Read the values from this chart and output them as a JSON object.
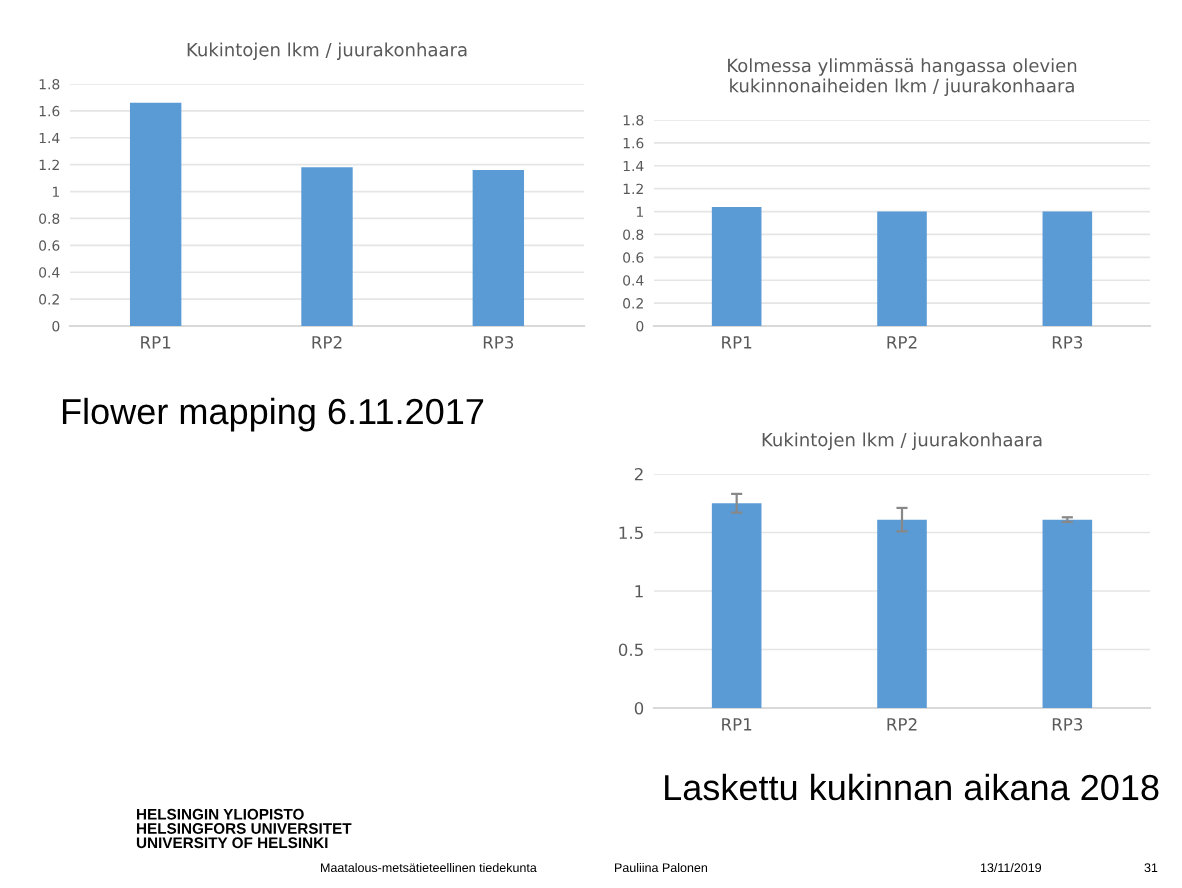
{
  "chart_data": [
    {
      "type": "bar",
      "title": "Kukintojen lkm / juurakonhaara",
      "categories": [
        "RP1",
        "RP2",
        "RP3"
      ],
      "values": [
        1.66,
        1.18,
        1.16
      ],
      "color": "#5b9bd5",
      "ylim": [
        0,
        1.8
      ],
      "yticks": [
        0,
        0.2,
        0.4,
        0.6,
        0.8,
        1,
        1.2,
        1.4,
        1.6,
        1.8
      ],
      "grid": "y",
      "annotations": [
        "Flower mapping 6.11.2017"
      ]
    },
    {
      "type": "bar",
      "title": "Kolmessa ylimmässä hangassa olevien\nkukinnonaiheiden lkm / juurakonhaara",
      "categories": [
        "RP1",
        "RP2",
        "RP3"
      ],
      "values": [
        1.04,
        1.0,
        1.0
      ],
      "color": "#5b9bd5",
      "ylim": [
        0,
        1.8
      ],
      "yticks": [
        0,
        0.2,
        0.4,
        0.6,
        0.8,
        1,
        1.2,
        1.4,
        1.6,
        1.8
      ],
      "grid": "y"
    },
    {
      "type": "bar",
      "title": "Kukintojen lkm / juurakonhaara",
      "categories": [
        "RP1",
        "RP2",
        "RP3"
      ],
      "values": [
        1.75,
        1.61,
        1.61
      ],
      "errors": [
        0.08,
        0.1,
        0.02
      ],
      "color": "#5b9bd5",
      "ylim": [
        0,
        2
      ],
      "yticks": [
        0,
        0.5,
        1,
        1.5,
        2
      ],
      "grid": "y",
      "annotations": [
        "Laskettu kukinnan aikana 2018",
        "HELSINGIN YLIOPISTO\nHELSINGFORS UNIVERSITET\nUNIVERSITY OF HELSINKI",
        "Maatalous-metsätieteellinen tiedekunta",
        "Pauliina Palonen",
        "13/11/2019",
        "31"
      ]
    }
  ]
}
